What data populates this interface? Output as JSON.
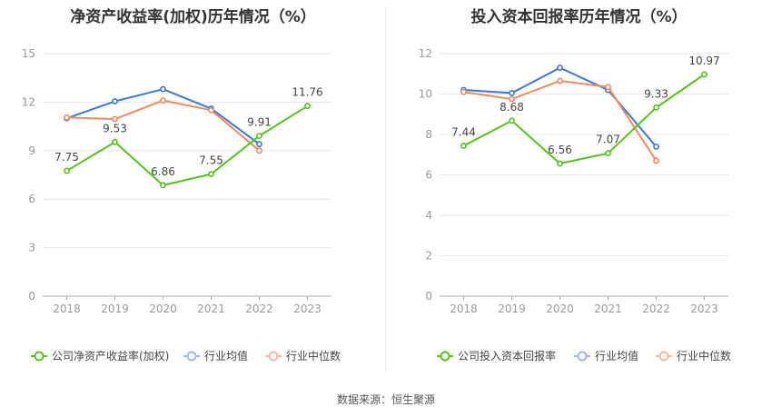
{
  "source_text": "数据来源：恒生聚源",
  "colors": {
    "company": "#52c41a",
    "avg": "#3a78d8",
    "median": "#f08a5d",
    "avg_legend": "#9bb8ee",
    "median_legend": "#f5b89e",
    "grid": "#e6e6e6",
    "axis": "#999999",
    "label": "#444444"
  },
  "chart_data": [
    {
      "type": "line",
      "title": "净资产收益率(加权)历年情况（%）",
      "categories": [
        "2018",
        "2019",
        "2020",
        "2021",
        "2022",
        "2023"
      ],
      "yticks": [
        "0",
        "3",
        "6",
        "9",
        "12",
        "15"
      ],
      "ylim": [
        0,
        15
      ],
      "grid": true,
      "legend_position": "bottom",
      "series": [
        {
          "name": "公司净资产收益率(加权)",
          "role": "company",
          "values": [
            7.75,
            9.53,
            6.86,
            7.55,
            9.91,
            11.76
          ],
          "labels": [
            "7.75",
            "9.53",
            "6.86",
            "7.55",
            "9.91",
            "11.76"
          ]
        },
        {
          "name": "行业均值",
          "role": "avg",
          "values": [
            11.0,
            12.05,
            12.8,
            11.6,
            9.4,
            null
          ]
        },
        {
          "name": "行业中位数",
          "role": "median",
          "values": [
            11.05,
            10.95,
            12.1,
            11.5,
            9.0,
            null
          ]
        }
      ]
    },
    {
      "type": "line",
      "title": "投入资本回报率历年情况（%）",
      "categories": [
        "2018",
        "2019",
        "2020",
        "2021",
        "2022",
        "2023"
      ],
      "yticks": [
        "0",
        "2",
        "4",
        "6",
        "8",
        "10",
        "12"
      ],
      "ylim": [
        0,
        12
      ],
      "grid": true,
      "legend_position": "bottom",
      "series": [
        {
          "name": "公司投入资本回报率",
          "role": "company",
          "values": [
            7.44,
            8.68,
            6.56,
            7.07,
            9.33,
            10.97
          ],
          "labels": [
            "7.44",
            "8.68",
            "6.56",
            "7.07",
            "9.33",
            "10.97"
          ]
        },
        {
          "name": "行业均值",
          "role": "avg",
          "values": [
            10.2,
            10.05,
            11.3,
            10.2,
            7.4,
            null
          ]
        },
        {
          "name": "行业中位数",
          "role": "median",
          "values": [
            10.1,
            9.75,
            10.65,
            10.35,
            6.7,
            null
          ]
        }
      ]
    }
  ]
}
